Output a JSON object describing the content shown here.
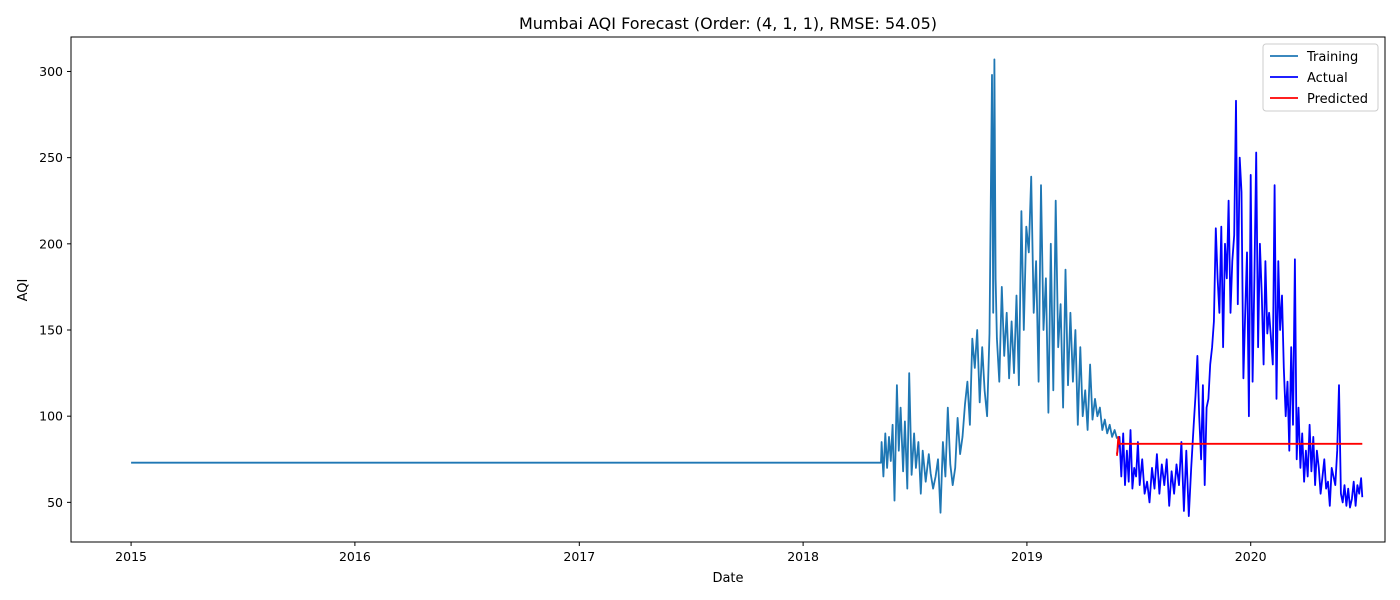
{
  "chart_data": {
    "type": "line",
    "title": "Mumbai AQI Forecast (Order: (4, 1, 1), RMSE: 54.05)",
    "xlabel": "Date",
    "ylabel": "AQI",
    "xlim": [
      "2014-09-25",
      "2020-08-07"
    ],
    "ylim": [
      27,
      320
    ],
    "x_ticks": [
      "2015",
      "2016",
      "2017",
      "2018",
      "2019",
      "2020"
    ],
    "y_ticks": [
      50,
      100,
      150,
      200,
      250,
      300
    ],
    "grid": false,
    "legend": "top-right",
    "colors": {
      "Training": "#1f77b4",
      "Actual": "#0000ff",
      "Predicted": "#ff0000"
    },
    "series": [
      {
        "name": "Training",
        "x": [
          "2015-01-01",
          "2018-05-08",
          "2018-05-09",
          "2018-05-12",
          "2018-05-15",
          "2018-05-18",
          "2018-05-21",
          "2018-05-24",
          "2018-05-27",
          "2018-05-30",
          "2018-06-03",
          "2018-06-06",
          "2018-06-09",
          "2018-06-13",
          "2018-06-16",
          "2018-06-20",
          "2018-06-23",
          "2018-06-27",
          "2018-07-01",
          "2018-07-04",
          "2018-07-08",
          "2018-07-12",
          "2018-07-15",
          "2018-07-20",
          "2018-07-25",
          "2018-07-28",
          "2018-08-01",
          "2018-08-05",
          "2018-08-09",
          "2018-08-13",
          "2018-08-17",
          "2018-08-21",
          "2018-08-25",
          "2018-08-29",
          "2018-09-02",
          "2018-09-06",
          "2018-09-10",
          "2018-09-14",
          "2018-09-18",
          "2018-09-22",
          "2018-09-26",
          "2018-09-30",
          "2018-10-04",
          "2018-10-08",
          "2018-10-12",
          "2018-10-16",
          "2018-10-20",
          "2018-10-24",
          "2018-10-28",
          "2018-11-01",
          "2018-11-05",
          "2018-11-07",
          "2018-11-09",
          "2018-11-11",
          "2018-11-13",
          "2018-11-17",
          "2018-11-21",
          "2018-11-25",
          "2018-11-29",
          "2018-12-03",
          "2018-12-07",
          "2018-12-11",
          "2018-12-15",
          "2018-12-19",
          "2018-12-23",
          "2018-12-27",
          "2018-12-31",
          "2019-01-04",
          "2019-01-08",
          "2019-01-12",
          "2019-01-16",
          "2019-01-20",
          "2019-01-24",
          "2019-01-28",
          "2019-02-01",
          "2019-02-05",
          "2019-02-09",
          "2019-02-13",
          "2019-02-17",
          "2019-02-21",
          "2019-02-25",
          "2019-03-01",
          "2019-03-05",
          "2019-03-09",
          "2019-03-13",
          "2019-03-17",
          "2019-03-21",
          "2019-03-25",
          "2019-03-29",
          "2019-04-02",
          "2019-04-06",
          "2019-04-10",
          "2019-04-14",
          "2019-04-18",
          "2019-04-22",
          "2019-04-26",
          "2019-04-30",
          "2019-05-04",
          "2019-05-08",
          "2019-05-12",
          "2019-05-16",
          "2019-05-20",
          "2019-05-24",
          "2019-05-28"
        ],
        "values": [
          73,
          73,
          85,
          65,
          90,
          70,
          88,
          74,
          95,
          51,
          118,
          80,
          105,
          68,
          97,
          58,
          125,
          66,
          90,
          70,
          85,
          55,
          80,
          62,
          78,
          67,
          58,
          65,
          75,
          44,
          85,
          65,
          105,
          72,
          60,
          70,
          99,
          78,
          88,
          107,
          120,
          95,
          145,
          128,
          150,
          108,
          140,
          115,
          100,
          148,
          298,
          160,
          307,
          180,
          145,
          120,
          175,
          135,
          160,
          122,
          155,
          125,
          170,
          118,
          219,
          150,
          210,
          195,
          239,
          160,
          190,
          120,
          234,
          150,
          180,
          102,
          200,
          115,
          225,
          140,
          165,
          105,
          185,
          118,
          160,
          120,
          150,
          95,
          140,
          100,
          115,
          92,
          130,
          98,
          110,
          100,
          105,
          92,
          98,
          90,
          95,
          88,
          92,
          87
        ]
      },
      {
        "name": "Actual",
        "x": [
          "2019-05-28",
          "2019-06-01",
          "2019-06-04",
          "2019-06-07",
          "2019-06-10",
          "2019-06-13",
          "2019-06-16",
          "2019-06-19",
          "2019-06-22",
          "2019-06-25",
          "2019-06-28",
          "2019-07-01",
          "2019-07-04",
          "2019-07-08",
          "2019-07-12",
          "2019-07-16",
          "2019-07-20",
          "2019-07-24",
          "2019-07-28",
          "2019-08-01",
          "2019-08-05",
          "2019-08-09",
          "2019-08-13",
          "2019-08-17",
          "2019-08-21",
          "2019-08-25",
          "2019-08-29",
          "2019-09-02",
          "2019-09-06",
          "2019-09-10",
          "2019-09-14",
          "2019-09-18",
          "2019-09-22",
          "2019-09-26",
          "2019-09-30",
          "2019-10-03",
          "2019-10-06",
          "2019-10-09",
          "2019-10-12",
          "2019-10-15",
          "2019-10-18",
          "2019-10-21",
          "2019-10-24",
          "2019-10-27",
          "2019-10-30",
          "2019-11-02",
          "2019-11-05",
          "2019-11-08",
          "2019-11-11",
          "2019-11-14",
          "2019-11-17",
          "2019-11-20",
          "2019-11-23",
          "2019-11-26",
          "2019-11-29",
          "2019-12-02",
          "2019-12-05",
          "2019-12-08",
          "2019-12-11",
          "2019-12-14",
          "2019-12-17",
          "2019-12-20",
          "2019-12-23",
          "2019-12-26",
          "2019-12-29",
          "2020-01-01",
          "2020-01-04",
          "2020-01-07",
          "2020-01-10",
          "2020-01-13",
          "2020-01-16",
          "2020-01-19",
          "2020-01-22",
          "2020-01-25",
          "2020-01-28",
          "2020-01-31",
          "2020-02-03",
          "2020-02-06",
          "2020-02-09",
          "2020-02-12",
          "2020-02-15",
          "2020-02-18",
          "2020-02-21",
          "2020-02-24",
          "2020-02-27",
          "2020-03-01",
          "2020-03-04",
          "2020-03-07",
          "2020-03-10",
          "2020-03-13",
          "2020-03-16",
          "2020-03-19",
          "2020-03-22",
          "2020-03-25",
          "2020-03-28",
          "2020-03-31",
          "2020-04-03",
          "2020-04-06",
          "2020-04-09",
          "2020-04-12",
          "2020-04-15",
          "2020-04-18",
          "2020-04-21",
          "2020-04-24",
          "2020-04-27",
          "2020-04-30",
          "2020-05-03",
          "2020-05-06",
          "2020-05-09",
          "2020-05-12",
          "2020-05-15",
          "2020-05-18",
          "2020-05-21",
          "2020-05-24",
          "2020-05-27",
          "2020-05-30",
          "2020-06-02",
          "2020-06-05",
          "2020-06-08",
          "2020-06-11",
          "2020-06-14",
          "2020-06-17",
          "2020-06-20",
          "2020-06-23",
          "2020-06-26",
          "2020-06-29",
          "2020-07-01"
        ],
        "values": [
          78,
          88,
          65,
          90,
          60,
          80,
          62,
          92,
          58,
          70,
          65,
          85,
          60,
          75,
          55,
          62,
          50,
          70,
          58,
          78,
          55,
          72,
          60,
          75,
          48,
          68,
          55,
          72,
          60,
          85,
          45,
          80,
          42,
          70,
          95,
          112,
          135,
          100,
          75,
          118,
          60,
          105,
          110,
          130,
          140,
          155,
          209,
          180,
          160,
          210,
          140,
          200,
          180,
          225,
          160,
          190,
          205,
          283,
          165,
          250,
          230,
          122,
          160,
          195,
          100,
          240,
          120,
          180,
          253,
          140,
          200,
          170,
          130,
          190,
          148,
          160,
          145,
          130,
          234,
          110,
          190,
          150,
          170,
          128,
          100,
          120,
          80,
          140,
          95,
          191,
          75,
          105,
          70,
          90,
          62,
          80,
          65,
          95,
          68,
          88,
          60,
          80,
          70,
          55,
          65,
          75,
          58,
          62,
          48,
          70,
          65,
          60,
          80,
          118,
          55,
          50,
          60,
          48,
          58,
          47,
          52,
          62,
          48,
          60,
          55,
          64,
          53
        ]
      },
      {
        "name": "Predicted",
        "x": [
          "2019-05-28",
          "2019-05-30",
          "2019-06-01",
          "2019-06-03",
          "2020-07-01"
        ],
        "values": [
          77,
          88,
          84,
          84,
          84
        ]
      }
    ]
  }
}
